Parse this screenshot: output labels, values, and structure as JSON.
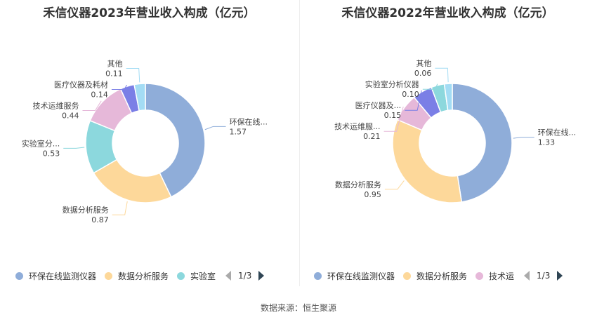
{
  "chart_data": [
    {
      "type": "donut",
      "title": "禾信仪器2023年营业收入构成（亿元）",
      "slices": [
        {
          "name": "环保在线监测仪器",
          "label": "环保在线...",
          "value": 1.57,
          "value_label": "1.57",
          "color": "#8fadd9"
        },
        {
          "name": "数据分析服务",
          "label": "数据分析服务",
          "value": 0.87,
          "value_label": "0.87",
          "color": "#fdd89a"
        },
        {
          "name": "实验室分析仪器",
          "label": "实验室分...",
          "value": 0.53,
          "value_label": "0.53",
          "color": "#8cd8dd"
        },
        {
          "name": "技术运维服务",
          "label": "技术运维服务",
          "value": 0.44,
          "value_label": "0.44",
          "color": "#e6b8d9"
        },
        {
          "name": "医疗仪器及耗材",
          "label": "医疗仪器及耗材",
          "value": 0.14,
          "value_label": "0.14",
          "color": "#7b7fe6"
        },
        {
          "name": "其他",
          "label": "其他",
          "value": 0.11,
          "value_label": "0.11",
          "color": "#a3dcf4"
        }
      ],
      "legend": {
        "items": [
          "环保在线监测仪器",
          "数据分析服务",
          "实验室"
        ],
        "page": "1/3"
      }
    },
    {
      "type": "donut",
      "title": "禾信仪器2022年营业收入构成（亿元）",
      "slices": [
        {
          "name": "环保在线监测仪器",
          "label": "环保在线...",
          "value": 1.33,
          "value_label": "1.33",
          "color": "#8fadd9"
        },
        {
          "name": "数据分析服务",
          "label": "数据分析服务",
          "value": 0.95,
          "value_label": "0.95",
          "color": "#fdd89a"
        },
        {
          "name": "技术运维服务",
          "label": "技术运维服...",
          "value": 0.21,
          "value_label": "0.21",
          "color": "#e6b8d9"
        },
        {
          "name": "医疗仪器及耗材",
          "label": "医疗仪器及...",
          "value": 0.15,
          "value_label": "0.15",
          "color": "#7b7fe6"
        },
        {
          "name": "实验室分析仪器",
          "label": "实验室分析仪器",
          "value": 0.1,
          "value_label": "0.10",
          "color": "#8cd8dd"
        },
        {
          "name": "其他",
          "label": "其他",
          "value": 0.06,
          "value_label": "0.06",
          "color": "#a3dcf4"
        }
      ],
      "legend": {
        "items": [
          "环保在线监测仪器",
          "数据分析服务",
          "技术运"
        ],
        "page": "1/3"
      }
    }
  ],
  "footer": {
    "source": "数据来源：恒生聚源"
  }
}
